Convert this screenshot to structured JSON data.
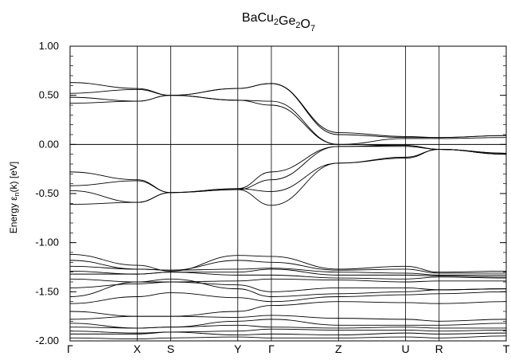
{
  "chart_data": {
    "type": "line",
    "title": {
      "base": [
        "BaCu",
        "Ge",
        "O"
      ],
      "subs": [
        "2",
        "2",
        "7"
      ]
    },
    "ylabel": {
      "pre": "Energy  ε",
      "sub": "n",
      "post": "(k)  [eV]"
    },
    "ylim": [
      -2.0,
      1.0
    ],
    "y_ticks": [
      1.0,
      0.5,
      0.0,
      -0.5,
      -1.0,
      -1.5,
      -2.0
    ],
    "y_tick_labels": [
      "1.00",
      "0.50",
      "0.00",
      "-0.50",
      "-1.00",
      "-1.50",
      "-2.00"
    ],
    "kpoints": [
      {
        "label": "Γ",
        "x": 0.0
      },
      {
        "label": "X",
        "x": 1.0
      },
      {
        "label": "S",
        "x": 1.5
      },
      {
        "label": "Y",
        "x": 2.5
      },
      {
        "label": "Γ",
        "x": 3.0
      },
      {
        "label": "Z",
        "x": 4.0
      },
      {
        "label": "U",
        "x": 5.0
      },
      {
        "label": "R",
        "x": 5.5
      },
      {
        "label": "T",
        "x": 6.5
      }
    ],
    "zero_line": 0.0,
    "grid": false,
    "series": [
      {
        "values": [
          0.63,
          0.57,
          0.5,
          0.57,
          0.62,
          0.12,
          0.08,
          0.07,
          0.09
        ]
      },
      {
        "values": [
          0.52,
          0.56,
          0.5,
          0.57,
          0.62,
          0.1,
          0.07,
          0.07,
          0.09
        ]
      },
      {
        "values": [
          0.48,
          0.44,
          0.5,
          0.45,
          0.44,
          0.0,
          0.06,
          0.06,
          0.07
        ]
      },
      {
        "values": [
          0.42,
          0.44,
          0.5,
          0.45,
          0.4,
          0.0,
          -0.01,
          -0.05,
          -0.1
        ]
      },
      {
        "values": [
          -0.28,
          -0.36,
          -0.49,
          -0.45,
          -0.28,
          -0.02,
          -0.01,
          -0.05,
          -0.09
        ]
      },
      {
        "values": [
          -0.42,
          -0.37,
          -0.49,
          -0.46,
          -0.36,
          -0.02,
          -0.02,
          -0.05,
          -0.09
        ]
      },
      {
        "values": [
          -0.47,
          -0.59,
          -0.49,
          -0.45,
          -0.48,
          -0.19,
          -0.13,
          -0.05,
          -0.1
        ]
      },
      {
        "values": [
          -0.61,
          -0.59,
          -0.49,
          -0.46,
          -0.62,
          -0.19,
          -0.14,
          -0.05,
          -0.1
        ]
      },
      {
        "values": [
          -1.12,
          -1.23,
          -1.29,
          -1.13,
          -1.14,
          -1.27,
          -1.24,
          -1.3,
          -1.29
        ]
      },
      {
        "values": [
          -1.18,
          -1.27,
          -1.28,
          -1.18,
          -1.2,
          -1.28,
          -1.27,
          -1.31,
          -1.31
        ]
      },
      {
        "values": [
          -1.24,
          -1.27,
          -1.28,
          -1.27,
          -1.26,
          -1.3,
          -1.31,
          -1.33,
          -1.33
        ]
      },
      {
        "values": [
          -1.29,
          -1.32,
          -1.3,
          -1.3,
          -1.27,
          -1.33,
          -1.33,
          -1.34,
          -1.35
        ]
      },
      {
        "values": [
          -1.32,
          -1.32,
          -1.3,
          -1.33,
          -1.33,
          -1.36,
          -1.37,
          -1.35,
          -1.36
        ]
      },
      {
        "values": [
          -1.37,
          -1.4,
          -1.4,
          -1.39,
          -1.37,
          -1.38,
          -1.4,
          -1.39,
          -1.39
        ]
      },
      {
        "values": [
          -1.46,
          -1.42,
          -1.4,
          -1.43,
          -1.5,
          -1.46,
          -1.46,
          -1.48,
          -1.47
        ]
      },
      {
        "values": [
          -1.55,
          -1.4,
          -1.37,
          -1.47,
          -1.55,
          -1.52,
          -1.5,
          -1.48,
          -1.47
        ]
      },
      {
        "values": [
          -1.62,
          -1.55,
          -1.51,
          -1.56,
          -1.6,
          -1.55,
          -1.53,
          -1.52,
          -1.5
        ]
      },
      {
        "values": [
          -1.7,
          -1.75,
          -1.75,
          -1.7,
          -1.64,
          -1.6,
          -1.61,
          -1.62,
          -1.6
        ]
      },
      {
        "values": [
          -1.78,
          -1.75,
          -1.75,
          -1.76,
          -1.74,
          -1.77,
          -1.78,
          -1.8,
          -1.78
        ]
      },
      {
        "values": [
          -1.82,
          -1.87,
          -1.86,
          -1.8,
          -1.78,
          -1.84,
          -1.84,
          -1.84,
          -1.82
        ]
      },
      {
        "values": [
          -1.86,
          -1.87,
          -1.86,
          -1.84,
          -1.86,
          -1.87,
          -1.86,
          -1.87,
          -1.87
        ]
      },
      {
        "values": [
          -1.9,
          -1.92,
          -1.91,
          -1.9,
          -1.88,
          -1.89,
          -1.89,
          -1.9,
          -1.89
        ]
      },
      {
        "values": [
          -1.93,
          -1.93,
          -1.91,
          -1.94,
          -1.93,
          -1.94,
          -1.92,
          -1.93,
          -1.92
        ]
      },
      {
        "values": [
          -1.97,
          -1.98,
          -1.97,
          -1.96,
          -1.97,
          -1.97,
          -1.96,
          -1.97,
          -1.95
        ]
      }
    ]
  }
}
